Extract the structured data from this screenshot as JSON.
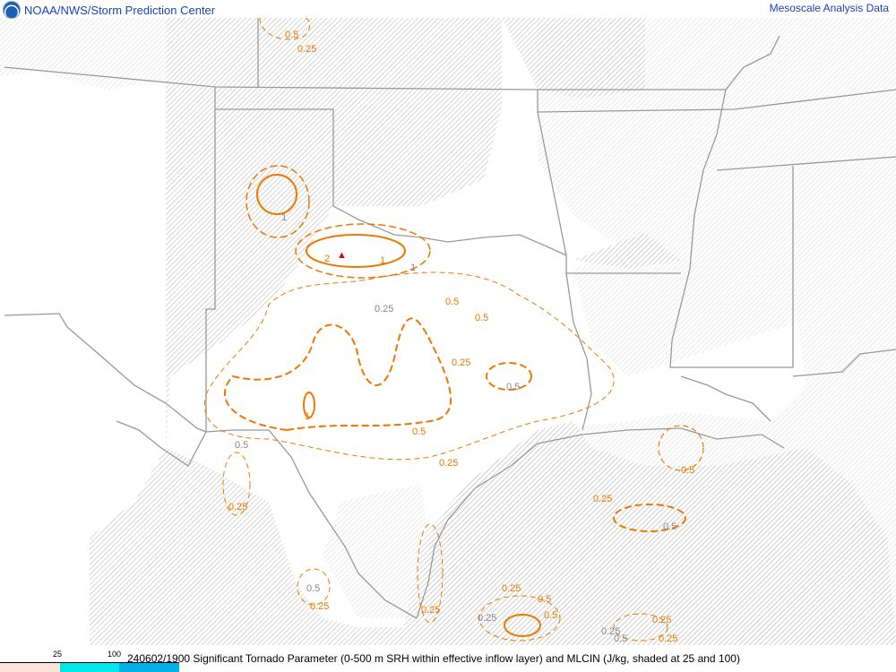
{
  "header": {
    "title": "NOAA/NWS/Storm Prediction Center",
    "product": "Mesoscale Analysis Data",
    "logo_icon": "noaa-logo-icon"
  },
  "legend": {
    "ticks": [
      "25",
      "100"
    ],
    "colors": {
      "below_25": "#fbe3da",
      "25_to_100": "#00e8e8",
      "above_100": "#00b0e8"
    }
  },
  "caption": "240602/1900 Significant Tornado Parameter (0-500 m SRH within effective inflow layer) and MLCIN (J/kg, shaded at 25 and 100)",
  "map": {
    "colors": {
      "contour": "#f07800",
      "border": "#999999",
      "hatch": "#b8b8b8",
      "max_marker": "#e00000"
    },
    "max_marker": "▲",
    "contour_labels": [
      "0.5",
      "0.25",
      "1",
      "2",
      "1",
      "0.25",
      "0.5",
      "0.25",
      "0.5",
      "1",
      "0.5",
      "0.5",
      "0.25",
      "0.25",
      "0.5",
      "0.25",
      "0.5",
      "0.5",
      "0.25",
      "0.25",
      "0.25",
      "0.25",
      "0.5",
      "0.25",
      "0.5",
      "0.25",
      "0.5",
      "0.25",
      "0.5",
      "1"
    ]
  }
}
